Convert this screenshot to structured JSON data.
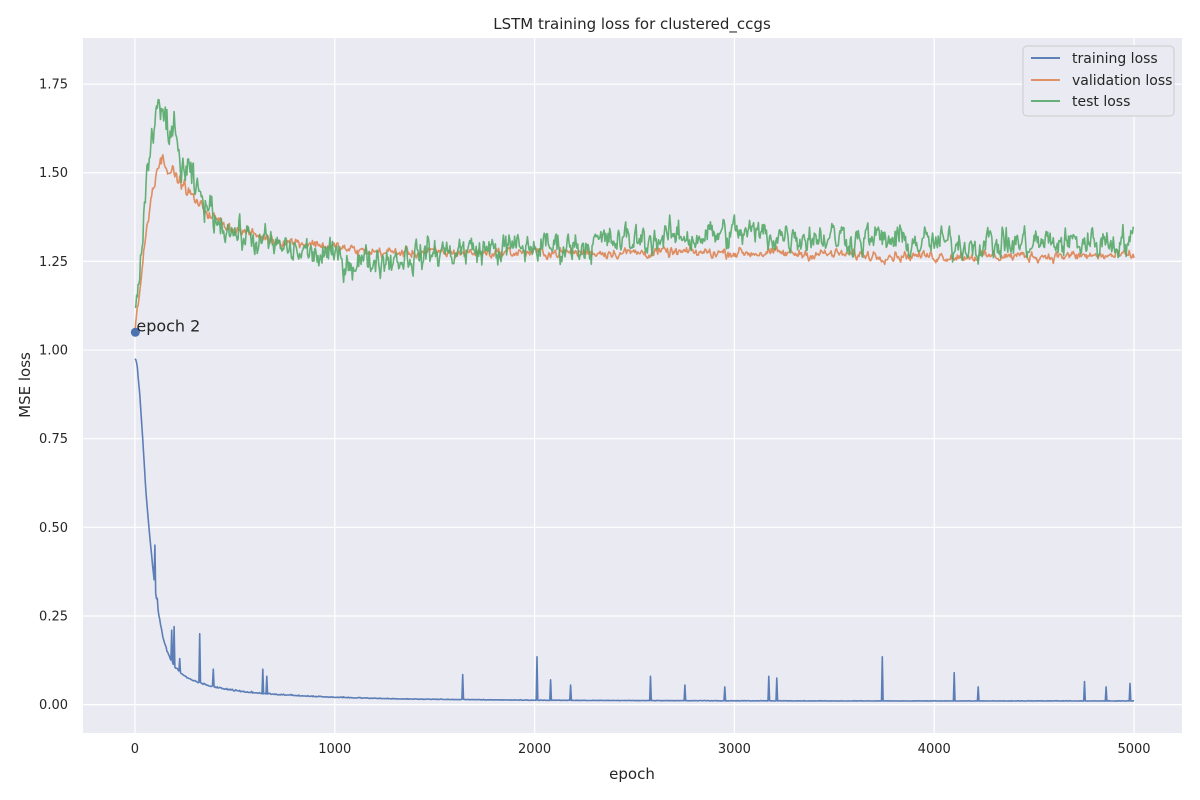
{
  "chart_data": {
    "type": "line",
    "title": "LSTM training loss for clustered_ccgs",
    "xlabel": "epoch",
    "ylabel": "MSE loss",
    "xlim": [
      -260,
      5240
    ],
    "ylim": [
      -0.08,
      1.88
    ],
    "xticks": [
      0,
      1000,
      2000,
      3000,
      4000,
      5000
    ],
    "xtick_labels": [
      "0",
      "1000",
      "2000",
      "3000",
      "4000",
      "5000"
    ],
    "yticks": [
      0.0,
      0.25,
      0.5,
      0.75,
      1.0,
      1.25,
      1.5,
      1.75
    ],
    "ytick_labels": [
      "0.00",
      "0.25",
      "0.50",
      "0.75",
      "1.00",
      "1.25",
      "1.50",
      "1.75"
    ],
    "grid": true,
    "legend_position": "top-right",
    "series": [
      {
        "name": "training loss",
        "color": "#4c72b0",
        "x": [
          0,
          10,
          25,
          40,
          55,
          70,
          85,
          100,
          120,
          140,
          160,
          180,
          200,
          230,
          260,
          300,
          350,
          400,
          450,
          500,
          600,
          700,
          800,
          900,
          1000,
          1200,
          1400,
          1600,
          1800,
          2000,
          2500,
          3000,
          3500,
          4000,
          4500,
          5000
        ],
        "y": [
          0.975,
          0.96,
          0.87,
          0.74,
          0.6,
          0.5,
          0.41,
          0.33,
          0.25,
          0.19,
          0.15,
          0.125,
          0.105,
          0.088,
          0.075,
          0.065,
          0.055,
          0.048,
          0.042,
          0.038,
          0.032,
          0.028,
          0.025,
          0.022,
          0.02,
          0.017,
          0.015,
          0.014,
          0.013,
          0.012,
          0.011,
          0.0105,
          0.01,
          0.01,
          0.01,
          0.01
        ],
        "spikes": [
          [
            100,
            0.45
          ],
          [
            110,
            0.3
          ],
          [
            185,
            0.21
          ],
          [
            195,
            0.22
          ],
          [
            225,
            0.13
          ],
          [
            325,
            0.2
          ],
          [
            390,
            0.1
          ],
          [
            640,
            0.1
          ],
          [
            660,
            0.08
          ],
          [
            1640,
            0.085
          ],
          [
            2010,
            0.135
          ],
          [
            2080,
            0.07
          ],
          [
            2180,
            0.055
          ],
          [
            2580,
            0.08
          ],
          [
            2750,
            0.055
          ],
          [
            2950,
            0.05
          ],
          [
            3170,
            0.08
          ],
          [
            3210,
            0.075
          ],
          [
            3740,
            0.135
          ],
          [
            4100,
            0.09
          ],
          [
            4220,
            0.05
          ],
          [
            4750,
            0.065
          ],
          [
            4860,
            0.05
          ],
          [
            4980,
            0.06
          ]
        ]
      },
      {
        "name": "validation loss",
        "color": "#dd8452",
        "x": [
          0,
          20,
          50,
          80,
          110,
          140,
          170,
          200,
          250,
          300,
          400,
          500,
          700,
          900,
          1100,
          1300,
          1600,
          2000,
          2500,
          3000,
          3500,
          4000,
          4500,
          5000
        ],
        "y": [
          1.06,
          1.15,
          1.3,
          1.43,
          1.52,
          1.54,
          1.52,
          1.49,
          1.46,
          1.42,
          1.37,
          1.34,
          1.31,
          1.3,
          1.28,
          1.275,
          1.275,
          1.275,
          1.275,
          1.275,
          1.27,
          1.265,
          1.265,
          1.265
        ],
        "noise": 0.018
      },
      {
        "name": "test loss",
        "color": "#55a868",
        "x": [
          0,
          20,
          50,
          80,
          110,
          140,
          170,
          200,
          250,
          300,
          400,
          500,
          700,
          900,
          1100,
          1300,
          1600,
          2000,
          2500,
          3000,
          3500,
          4000,
          4500,
          5000
        ],
        "y": [
          1.07,
          1.2,
          1.42,
          1.58,
          1.65,
          1.66,
          1.63,
          1.58,
          1.5,
          1.45,
          1.38,
          1.33,
          1.29,
          1.27,
          1.25,
          1.26,
          1.28,
          1.29,
          1.31,
          1.33,
          1.32,
          1.3,
          1.3,
          1.31
        ],
        "noise": 0.055
      }
    ],
    "annotations": [
      {
        "text": "epoch 2",
        "x": 2,
        "y": 1.05,
        "marker_color": "#4c72b0"
      }
    ]
  }
}
